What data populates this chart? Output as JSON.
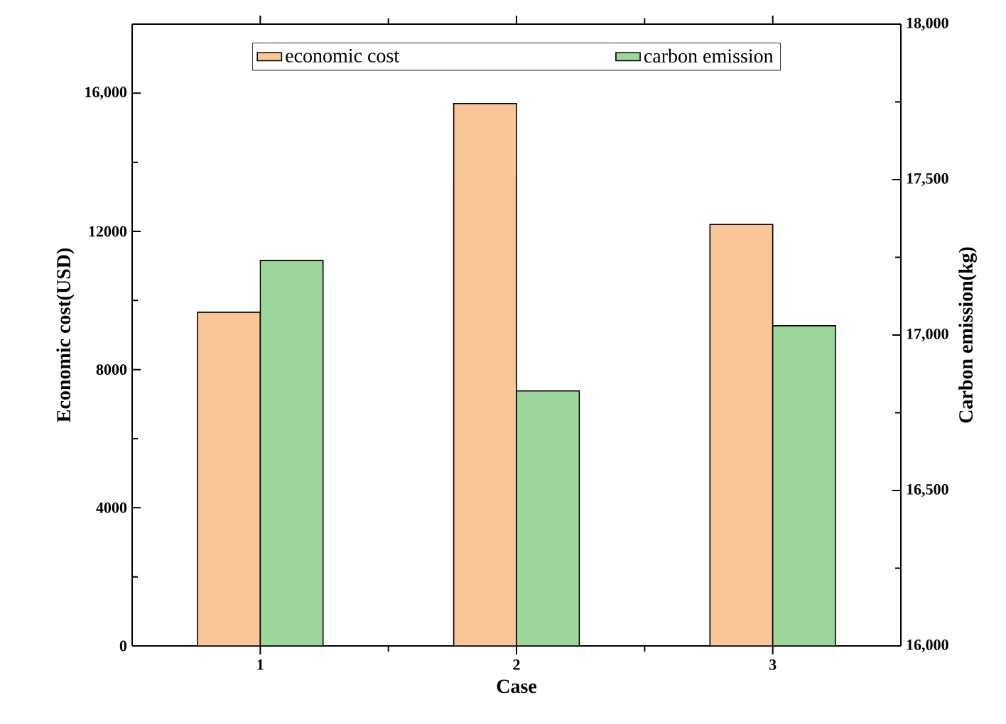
{
  "chart_data": {
    "type": "bar",
    "xlabel": "Case",
    "ylabel": "Economic cost(USD)",
    "y2label": "Carbon emission(kg)",
    "categories": [
      "1",
      "2",
      "3"
    ],
    "series": [
      {
        "name": "economic cost",
        "color": "#f9c697",
        "values": [
          9660,
          15700,
          12200
        ]
      },
      {
        "name": "carbon emission",
        "color": "#9dd69b",
        "values": [
          17240,
          16820,
          17030
        ],
        "axis": "y2"
      }
    ],
    "ylim": [
      0,
      18000
    ],
    "yticks": [
      0,
      4000,
      8000,
      12000,
      {
        "value": 16000,
        "label": "16,000"
      }
    ],
    "y2lim": [
      16000,
      18000
    ],
    "y2ticks": [
      {
        "value": 16000,
        "label": "16,000"
      },
      {
        "value": 16500,
        "label": "16,500"
      },
      {
        "value": 17000,
        "label": "17,000"
      },
      {
        "value": 17500,
        "label": "17,500"
      },
      {
        "value": 18000,
        "label": "18,000"
      }
    ],
    "legend": "top"
  }
}
